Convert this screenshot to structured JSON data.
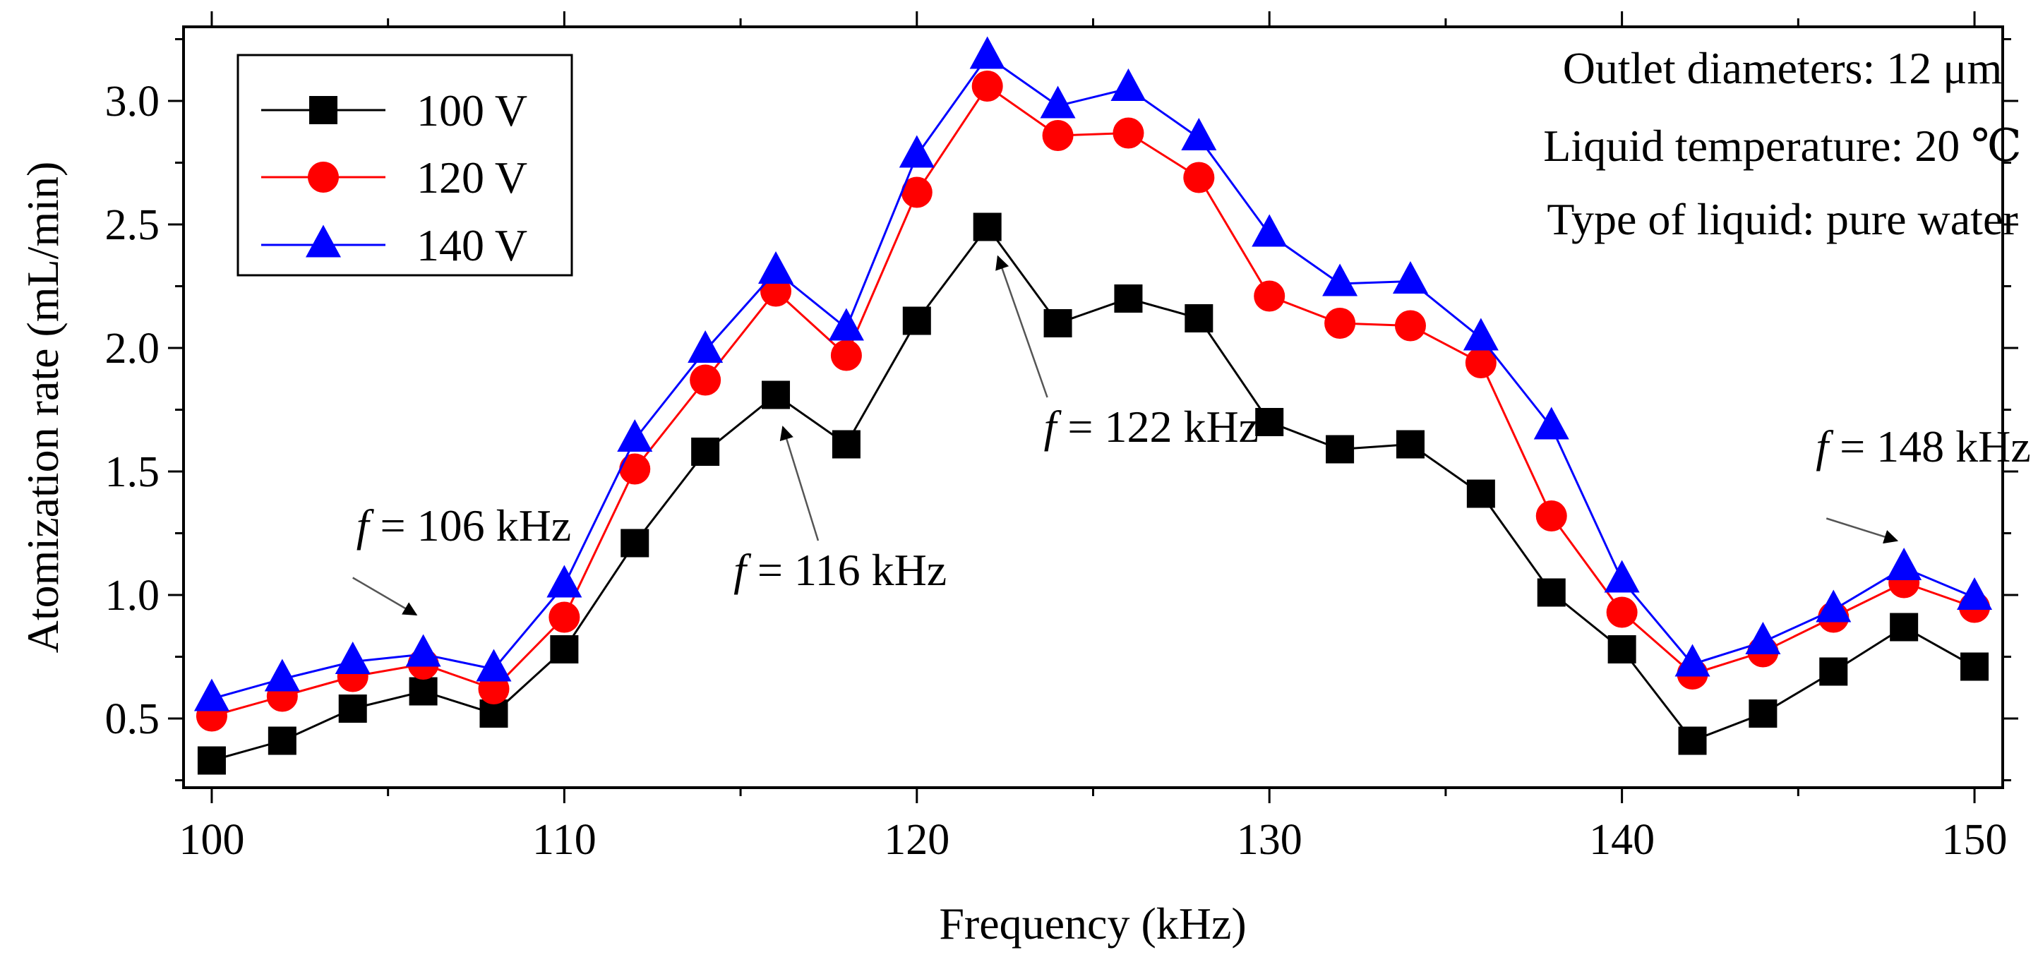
{
  "chart_data": {
    "type": "line",
    "xlabel": "Frequency (kHz)",
    "ylabel": "Atomization rate (mL/min)",
    "xlim": [
      99.2,
      150.8
    ],
    "ylim": [
      0.22,
      3.3
    ],
    "x_ticks": [
      100,
      110,
      120,
      130,
      140,
      150
    ],
    "x_minor_step": 5,
    "y_ticks": [
      0.5,
      1.0,
      1.5,
      2.0,
      2.5,
      3.0
    ],
    "y_minor_step": 0.25,
    "x": [
      100,
      102,
      104,
      106,
      108,
      110,
      112,
      114,
      116,
      118,
      120,
      122,
      124,
      126,
      128,
      130,
      132,
      134,
      136,
      138,
      140,
      142,
      144,
      146,
      148,
      150
    ],
    "series": [
      {
        "name": "100 V",
        "color": "#000000",
        "marker": "square",
        "values": [
          0.33,
          0.41,
          0.54,
          0.61,
          0.52,
          0.78,
          1.21,
          1.58,
          1.81,
          1.61,
          2.11,
          2.49,
          2.1,
          2.2,
          2.12,
          1.7,
          1.59,
          1.61,
          1.41,
          1.01,
          0.78,
          0.41,
          0.52,
          0.69,
          0.87,
          0.71
        ]
      },
      {
        "name": "120 V",
        "color": "#ff0000",
        "marker": "circle",
        "values": [
          0.51,
          0.59,
          0.67,
          0.72,
          0.62,
          0.91,
          1.51,
          1.87,
          2.23,
          1.97,
          2.63,
          3.06,
          2.86,
          2.87,
          2.69,
          2.21,
          2.1,
          2.09,
          1.94,
          1.32,
          0.93,
          0.68,
          0.77,
          0.91,
          1.05,
          0.95
        ]
      },
      {
        "name": "140 V",
        "color": "#0000ff",
        "marker": "triangle",
        "values": [
          0.58,
          0.66,
          0.73,
          0.76,
          0.7,
          1.04,
          1.63,
          1.99,
          2.31,
          2.08,
          2.78,
          3.18,
          2.98,
          3.05,
          2.85,
          2.46,
          2.26,
          2.27,
          2.04,
          1.68,
          1.06,
          0.72,
          0.81,
          0.94,
          1.11,
          0.99
        ]
      }
    ],
    "legend_position": "top-left",
    "info_lines": [
      "Outlet diameters: 12 μm",
      "Liquid temperature: 20 ℃",
      "Type of liquid: pure water"
    ],
    "annotations": [
      {
        "f": "f",
        "text": "= 106 kHz",
        "label_x": 104.1,
        "label_y": 1.22,
        "arrow_from": [
          104,
          1.07
        ],
        "arrow_to": [
          105.8,
          0.92
        ]
      },
      {
        "f": "f",
        "text": "= 116 kHz",
        "label_x": 114.8,
        "label_y": 1.04,
        "arrow_from": [
          117.2,
          1.22
        ],
        "arrow_to": [
          116.2,
          1.68
        ]
      },
      {
        "f": "f",
        "text": "= 122 kHz",
        "label_x": 123.6,
        "label_y": 1.62,
        "arrow_from": [
          123.7,
          1.8
        ],
        "arrow_to": [
          122.3,
          2.37
        ]
      },
      {
        "f": "f",
        "text": "= 148 kHz",
        "label_x": 145.5,
        "label_y": 1.54,
        "arrow_from": [
          145.8,
          1.31
        ],
        "arrow_to": [
          147.8,
          1.22
        ]
      }
    ]
  }
}
